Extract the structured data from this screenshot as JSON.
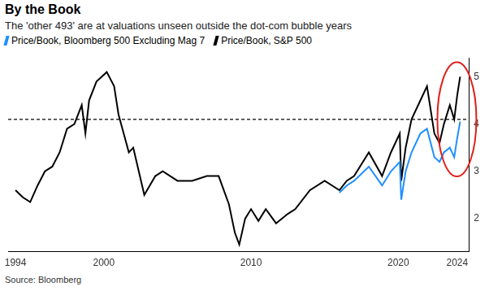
{
  "chart_data": {
    "type": "line",
    "title": "By the Book",
    "subtitle": "The 'other 493' are at valuations unseen outside the dot-com bubble years",
    "source": "Source: Bloomberg",
    "x": [
      1994.0,
      1994.5,
      1995.0,
      1995.5,
      1996.0,
      1996.5,
      1997.0,
      1997.5,
      1998.0,
      1998.5,
      1998.75,
      1999.0,
      1999.5,
      2000.2,
      2000.7,
      2001.0,
      2001.7,
      2002.0,
      2002.75,
      2003.5,
      2004.0,
      2005.0,
      2006.0,
      2007.0,
      2007.8,
      2008.5,
      2008.9,
      2009.2,
      2009.6,
      2010.0,
      2010.5,
      2011.0,
      2011.7,
      2012.5,
      2013.0,
      2014.0,
      2015.0,
      2016.0,
      2016.5,
      2017.0,
      2018.0,
      2018.9,
      2019.5,
      2020.1,
      2020.2,
      2020.5,
      2020.9,
      2021.5,
      2021.95,
      2022.45,
      2022.8,
      2023.1,
      2023.5,
      2023.8,
      2024.0,
      2024.2
    ],
    "series": [
      {
        "name": "Price/Book, Bloomberg 500 Excluding Mag 7",
        "color": "#1f8fff",
        "values": [
          null,
          null,
          null,
          null,
          null,
          null,
          null,
          null,
          null,
          null,
          null,
          null,
          null,
          null,
          null,
          null,
          null,
          null,
          null,
          null,
          null,
          null,
          null,
          null,
          null,
          null,
          null,
          null,
          null,
          null,
          null,
          null,
          null,
          null,
          null,
          null,
          null,
          2.55,
          2.7,
          2.8,
          3.1,
          2.7,
          3.0,
          3.2,
          2.4,
          3.0,
          3.4,
          3.8,
          3.9,
          3.3,
          3.2,
          3.4,
          3.5,
          3.3,
          3.7,
          4.05
        ]
      },
      {
        "name": "Price/Book, S&P 500",
        "color": "#000000",
        "values": [
          2.6,
          2.45,
          2.35,
          2.7,
          3.0,
          3.1,
          3.4,
          3.9,
          4.0,
          4.4,
          3.8,
          4.5,
          4.9,
          5.1,
          4.8,
          4.2,
          3.4,
          3.5,
          2.5,
          2.9,
          3.0,
          2.8,
          2.8,
          2.9,
          2.9,
          2.3,
          1.7,
          1.45,
          2.0,
          2.2,
          1.95,
          2.2,
          1.9,
          2.1,
          2.2,
          2.6,
          2.8,
          2.6,
          2.8,
          2.9,
          3.4,
          2.9,
          3.4,
          3.8,
          2.8,
          3.5,
          4.1,
          4.5,
          4.8,
          3.8,
          3.6,
          4.0,
          4.4,
          4.1,
          4.6,
          5.0
        ]
      }
    ],
    "xlim": [
      1993.5,
      2024.8
    ],
    "xticks": [
      1994,
      2000,
      2010,
      2020,
      2024
    ],
    "ylim": [
      1.3,
      5.4
    ],
    "yticks": [
      2,
      3,
      4,
      5
    ],
    "reference_lines": [
      {
        "y": 4.1,
        "line_style": "dashed",
        "color": "#000000"
      }
    ],
    "grid": false,
    "legend": "top-left"
  }
}
